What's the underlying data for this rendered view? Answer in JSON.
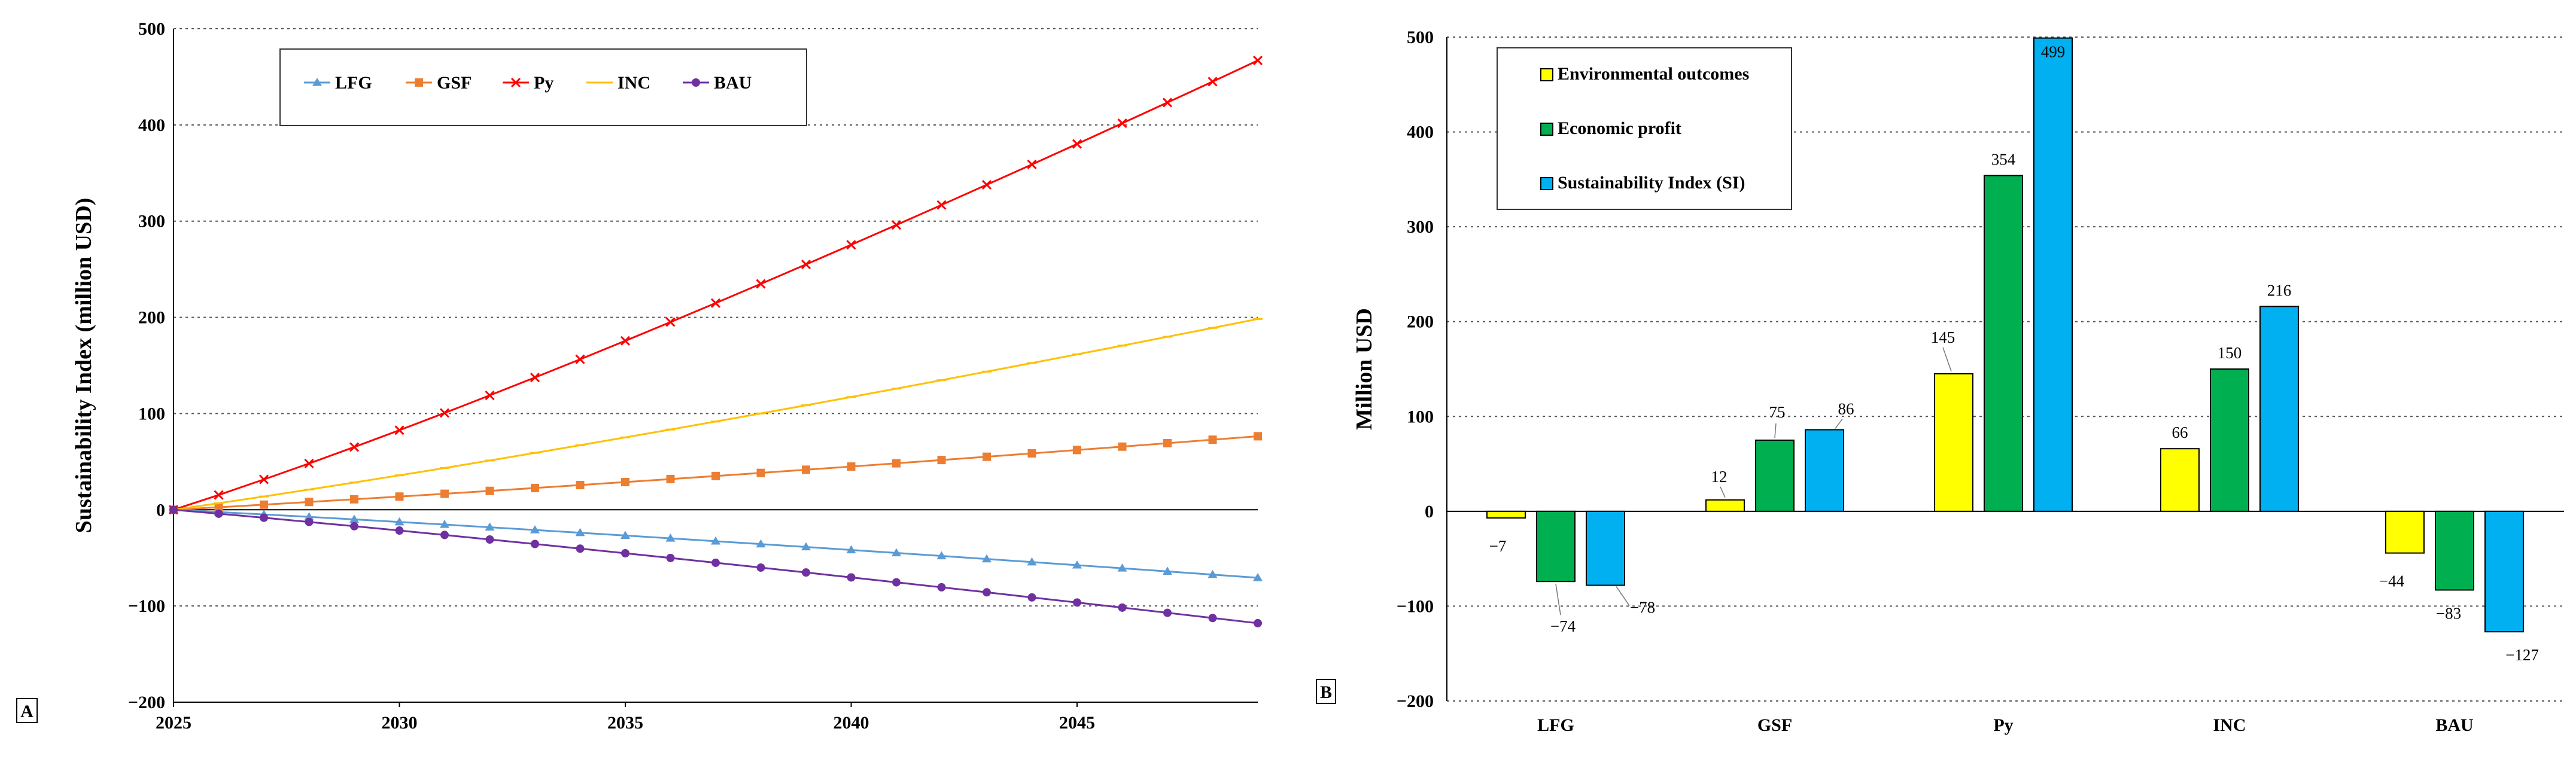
{
  "chart_data": [
    {
      "panel_label": "A",
      "type": "line",
      "ylabel": "Sustainability Index (million USD)",
      "xlabel": "",
      "xlim": [
        2025,
        2049
      ],
      "ylim": [
        -200,
        500
      ],
      "x_ticks": [
        "2025",
        "2030",
        "2035",
        "2040",
        "2045"
      ],
      "y_ticks": [
        "500",
        "400",
        "300",
        "200",
        "100",
        "0",
        "−100",
        "−200"
      ],
      "grid": true,
      "legend_position": "top-center",
      "x": [
        2025,
        2026,
        2027,
        2028,
        2029,
        2030,
        2031,
        2032,
        2033,
        2034,
        2035,
        2036,
        2037,
        2038,
        2039,
        2040,
        2041,
        2042,
        2043,
        2044,
        2045,
        2046,
        2047,
        2048,
        2049
      ],
      "series": [
        {
          "name": "LFG",
          "color": "#5b9bd5",
          "marker": "triangle",
          "values": [
            0,
            -2.4,
            -4.9,
            -7.4,
            -10,
            -12.7,
            -15.4,
            -18.2,
            -21,
            -23.9,
            -26.8,
            -29.7,
            -32.7,
            -35.7,
            -38.7,
            -41.8,
            -44.9,
            -48,
            -51.2,
            -54.4,
            -57.6,
            -60.8,
            -64.1,
            -67.4,
            -70.7
          ]
        },
        {
          "name": "GSF",
          "color": "#ed7d31",
          "marker": "square",
          "values": [
            0,
            2.6,
            5.3,
            8.1,
            10.9,
            13.7,
            16.6,
            19.6,
            22.6,
            25.7,
            28.8,
            31.9,
            35.1,
            38.3,
            41.6,
            44.9,
            48.3,
            51.7,
            55.1,
            58.6,
            62.1,
            65.6,
            69.2,
            72.8,
            76.4
          ]
        },
        {
          "name": "Py",
          "color": "#ff0000",
          "marker": "x",
          "values": [
            0,
            15.4,
            31.5,
            48.1,
            65.2,
            82.7,
            100.6,
            118.9,
            137.5,
            156.4,
            175.6,
            195.1,
            214.8,
            234.8,
            255,
            275.4,
            296,
            316.8,
            337.8,
            358.9,
            380.2,
            401.7,
            423.3,
            445,
            467
          ]
        },
        {
          "name": "INC",
          "color": "#ffc000",
          "marker": "dash",
          "values": [
            0,
            6.8,
            13.8,
            21,
            28.3,
            35.8,
            43.4,
            51.2,
            59.1,
            67.1,
            75.2,
            83.4,
            91.7,
            100.1,
            108.6,
            117.2,
            125.9,
            134.7,
            143.6,
            152.5,
            161.5,
            170.6,
            179.8,
            189,
            198.3
          ]
        },
        {
          "name": "BAU",
          "color": "#7030a0",
          "marker": "circle",
          "values": [
            0,
            -4.1,
            -8.3,
            -12.7,
            -17.1,
            -21.6,
            -26.2,
            -30.9,
            -35.6,
            -40.4,
            -45.2,
            -50.1,
            -55.1,
            -60.1,
            -65.2,
            -70.3,
            -75.4,
            -80.6,
            -85.8,
            -91.1,
            -96.4,
            -101.7,
            -107.1,
            -112.5,
            -117.9
          ]
        }
      ]
    },
    {
      "panel_label": "B",
      "type": "bar",
      "ylabel": "Million USD",
      "xlabel": "",
      "ylim": [
        -200,
        500
      ],
      "y_ticks": [
        "500",
        "400",
        "300",
        "200",
        "100",
        "0",
        "−100",
        "−200"
      ],
      "grid": true,
      "legend_position": "top-left",
      "categories": [
        "LFG",
        "GSF",
        "Py",
        "INC",
        "BAU"
      ],
      "series": [
        {
          "name": "Environmental outcomes",
          "color": "#ffff00",
          "values": [
            -7,
            12,
            145,
            66,
            -44
          ],
          "labels": [
            "−7",
            "12",
            "145",
            "66",
            "−44"
          ]
        },
        {
          "name": "Economic profit",
          "color": "#00b050",
          "values": [
            -74,
            75,
            354,
            150,
            -83
          ],
          "labels": [
            "−74",
            "75",
            "354",
            "150",
            "−83"
          ]
        },
        {
          "name": "Sustainability Index (SI)",
          "color": "#00b0f0",
          "values": [
            -78,
            86,
            499,
            216,
            -127
          ],
          "labels": [
            "−78",
            "86",
            "499",
            "216",
            "−127"
          ]
        }
      ]
    }
  ]
}
